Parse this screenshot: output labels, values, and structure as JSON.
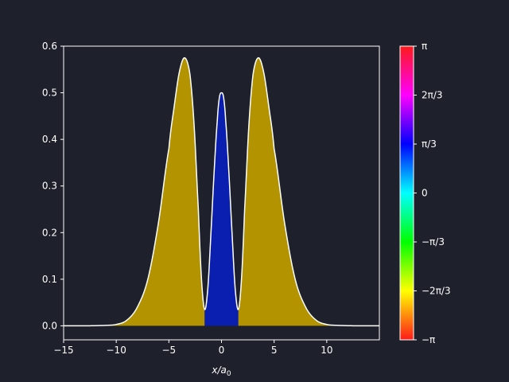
{
  "figure": {
    "background": "#1e212b",
    "foreground": "#ffffff"
  },
  "chart_data": {
    "type": "area",
    "title": "",
    "xlabel": "x/a₀",
    "ylabel": "",
    "xlim": [
      -15,
      15
    ],
    "ylim": [
      -0.03,
      0.6
    ],
    "xticks": [
      -15,
      -10,
      -5,
      0,
      5,
      10
    ],
    "xtick_labels": [
      "−15",
      "−10",
      "−5",
      "0",
      "5",
      "10"
    ],
    "yticks": [
      0.0,
      0.1,
      0.2,
      0.3,
      0.4,
      0.5,
      0.6
    ],
    "ytick_labels": [
      "0.0",
      "0.1",
      "0.2",
      "0.3",
      "0.4",
      "0.5",
      "0.6"
    ],
    "grid": false,
    "curve_color": "#ffffff",
    "x": [
      -15,
      -13,
      -11,
      -10,
      -9,
      -8,
      -7,
      -6,
      -5,
      -4.5,
      -4,
      -3.5,
      -3,
      -2.6,
      -2.2,
      -1.9,
      -1.6,
      -1.3,
      -1.0,
      -0.7,
      -0.4,
      -0.2,
      0,
      0.2,
      0.4,
      0.7,
      1.0,
      1.3,
      1.6,
      1.9,
      2.2,
      2.6,
      3,
      3.5,
      4,
      4.5,
      5,
      6,
      7,
      8,
      9,
      10,
      11,
      13,
      15
    ],
    "y": [
      0.0,
      0.0,
      0.001,
      0.003,
      0.012,
      0.04,
      0.1,
      0.22,
      0.38,
      0.47,
      0.545,
      0.575,
      0.54,
      0.43,
      0.25,
      0.1,
      0.035,
      0.08,
      0.2,
      0.33,
      0.44,
      0.49,
      0.5,
      0.49,
      0.44,
      0.33,
      0.2,
      0.08,
      0.035,
      0.1,
      0.25,
      0.43,
      0.54,
      0.575,
      0.545,
      0.47,
      0.38,
      0.22,
      0.1,
      0.04,
      0.012,
      0.003,
      0.001,
      0.0,
      0.0
    ],
    "fill_regions": [
      {
        "x_from": -15,
        "x_to": -1.6,
        "phase_label": "−π",
        "color": "#b39400"
      },
      {
        "x_from": -1.6,
        "x_to": 1.6,
        "phase_label": "π/3",
        "color": "#0a1fb0"
      },
      {
        "x_from": 1.6,
        "x_to": 15,
        "phase_label": "−π",
        "color": "#b39400"
      }
    ],
    "colorbar": {
      "range": [
        "−π",
        "π"
      ],
      "tick_labels": [
        "π",
        "2π/3",
        "π/3",
        "0",
        "−π/3",
        "−2π/3",
        "−π"
      ],
      "stops": [
        "#ff1a1a",
        "#ff00ff",
        "#0000ff",
        "#00ffff",
        "#00ff00",
        "#ffff00",
        "#ff1a1a"
      ]
    }
  }
}
